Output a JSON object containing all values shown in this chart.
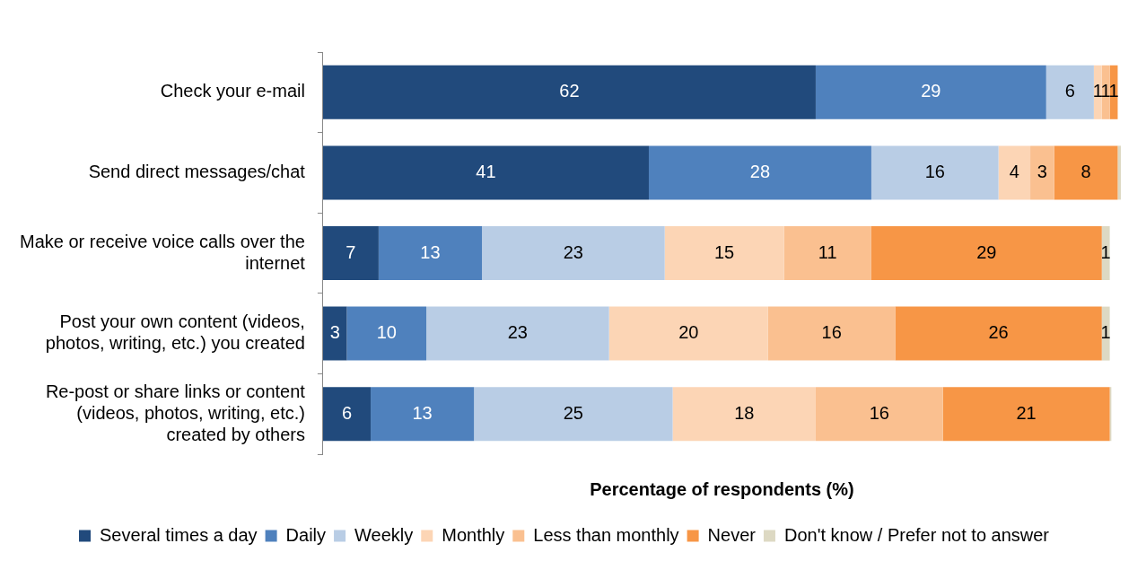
{
  "chart_data": {
    "type": "bar",
    "orientation": "horizontal",
    "stacked": true,
    "xlabel": "Percentage of respondents (%)",
    "legend": "bottom",
    "grid": false,
    "categories": [
      "Check your e-mail",
      "Send direct messages/chat",
      "Make or receive voice calls over the internet",
      "Post your own content (videos, photos, writing, etc.) you created",
      "Re-post or share links or content (videos, photos, writing, etc.) created by others"
    ],
    "series": [
      {
        "name": "Several times a day",
        "color": "#214a7c",
        "values": [
          62,
          41,
          7,
          3,
          6
        ],
        "value_labels": [
          "62",
          "41",
          "7",
          "3",
          "6"
        ]
      },
      {
        "name": "Daily",
        "color": "#4f81bd",
        "values": [
          29,
          28,
          13,
          10,
          13
        ],
        "value_labels": [
          "29",
          "28",
          "13",
          "10",
          "13"
        ]
      },
      {
        "name": "Weekly",
        "color": "#b9cde5",
        "values": [
          6,
          16,
          23,
          23,
          25
        ],
        "value_labels": [
          "6",
          "16",
          "23",
          "23",
          "25"
        ]
      },
      {
        "name": "Monthly",
        "color": "#fcd5b5",
        "values": [
          1,
          4,
          15,
          20,
          18
        ],
        "value_labels": [
          "1",
          "4",
          "15",
          "20",
          "18"
        ]
      },
      {
        "name": "Less than monthly",
        "color": "#fac090",
        "values": [
          1,
          3,
          11,
          16,
          16
        ],
        "value_labels": [
          "1",
          "3",
          "11",
          "16",
          "16"
        ]
      },
      {
        "name": "Never",
        "color": "#f79646",
        "values": [
          1,
          8,
          29,
          26,
          21
        ],
        "value_labels": [
          "1",
          "8",
          "29",
          "26",
          "21"
        ]
      },
      {
        "name": "Don't know / Prefer not to answer",
        "color": "#ddd9c3",
        "values": [
          null,
          0.4,
          1,
          1,
          0.2
        ],
        "value_labels": [
          null,
          null,
          "1",
          "1",
          null
        ]
      }
    ]
  }
}
